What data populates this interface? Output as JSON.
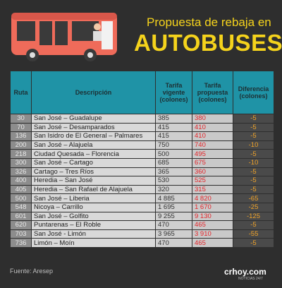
{
  "header": {
    "title_line1": "Propuesta de rebaja en",
    "title_line2": "AUTOBUSES"
  },
  "table": {
    "columns": [
      "Ruta",
      "Descripción",
      "Tarifa vigente (colones)",
      "Tarifa propuesta (colones)",
      "Diferencia (colones)"
    ],
    "rows": [
      [
        "30",
        "San José – Guadalupe",
        "385",
        "380",
        "-5"
      ],
      [
        "70",
        "San José – Desamparados",
        "415",
        "410",
        "-5"
      ],
      [
        "136",
        "San Isidro de El General – Palmares",
        "415",
        "410",
        "-5"
      ],
      [
        "200",
        "San José – Alajuela",
        "750",
        "740",
        "-10"
      ],
      [
        "218",
        "Ciudad Quesada – Florencia",
        "500",
        "495",
        "-5"
      ],
      [
        "300",
        "San José – Cartago",
        "685",
        "675",
        "-10"
      ],
      [
        "326",
        "Cartago – Tres Ríos",
        "365",
        "360",
        "-5"
      ],
      [
        "400",
        "Heredia – San José",
        "530",
        "525",
        "-5"
      ],
      [
        "405",
        "Heredia – San Rafael de Alajuela",
        "320",
        "315",
        "-5"
      ],
      [
        "500",
        "San José – Liberia",
        "4 885",
        "4 820",
        "-65"
      ],
      [
        "548",
        "Nicoya – Carrillo",
        "1 695",
        "1 670",
        "-25"
      ],
      [
        "601",
        "San José – Golfito",
        "9 255",
        "9 130",
        "-125"
      ],
      [
        "620",
        "Puntarenas – El Roble",
        "470",
        "465",
        "-5"
      ],
      [
        "703",
        "San José - Limón",
        "3 965",
        "3 910",
        "-55"
      ],
      [
        "736",
        "Limón – Moín",
        "470",
        "465",
        "-5"
      ]
    ]
  },
  "footer": {
    "source": "Fuente: Aresep",
    "logo": "crhoy.com",
    "logo_tagline": "NOTICIAS 24/7"
  }
}
